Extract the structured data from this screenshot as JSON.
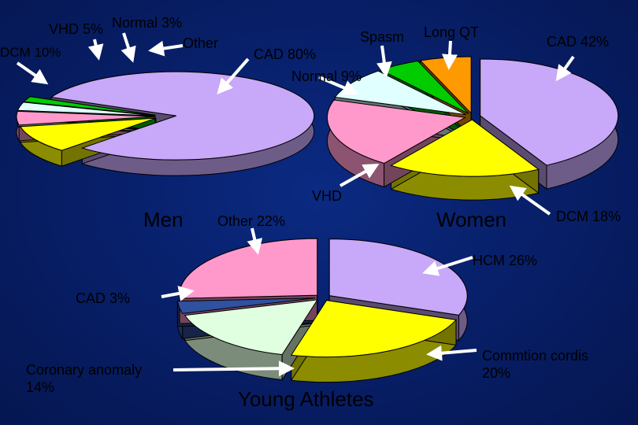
{
  "chart_data": [
    {
      "type": "pie",
      "title": "Men",
      "categories": [
        "CAD",
        "DCM",
        "VHD",
        "Normal",
        "Other"
      ],
      "values": [
        80,
        10,
        5,
        3,
        2
      ],
      "colors": [
        "#c8a8f8",
        "#ffff00",
        "#ff99cc",
        "#e0ffff",
        "#00cc00"
      ]
    },
    {
      "type": "pie",
      "title": "Women",
      "categories": [
        "CAD",
        "DCM",
        "VHD",
        "Normal",
        "Spasm",
        "Long QT"
      ],
      "values": [
        42,
        18,
        20,
        9,
        5,
        6
      ],
      "colors": [
        "#c8a8f8",
        "#ffff00",
        "#ff99cc",
        "#e0ffff",
        "#00cc00",
        "#ff9900"
      ]
    },
    {
      "type": "pie",
      "title": "Young Athletes",
      "categories": [
        "HCM",
        "Commtion cordis",
        "Coronary anomaly",
        "CAD",
        "Other"
      ],
      "values": [
        26,
        20,
        14,
        3,
        22
      ],
      "colors": [
        "#c8a8f8",
        "#ffff00",
        "#e0ffe0",
        "#3050a0",
        "#ff99cc"
      ]
    }
  ],
  "labels": {
    "men": {
      "title": "Men",
      "vhd": "VHD 5%",
      "normal": "Normal 3%",
      "other": "Other",
      "dcm": "DCM 10%",
      "cad": "CAD 80%"
    },
    "women": {
      "title": "Women",
      "spasm": "Spasm",
      "long_qt": "Long QT",
      "cad": "CAD 42%",
      "normal": "Normal 9%",
      "vhd": "VHD",
      "dcm": "DCM 18%"
    },
    "athletes": {
      "title": "Young Athletes",
      "other": "Other 22%",
      "hcm": "HCM 26%",
      "cad": "CAD 3%",
      "coronary": "Coronary anomaly\n14%",
      "commotion": "Commtion cordis\n20%"
    }
  }
}
